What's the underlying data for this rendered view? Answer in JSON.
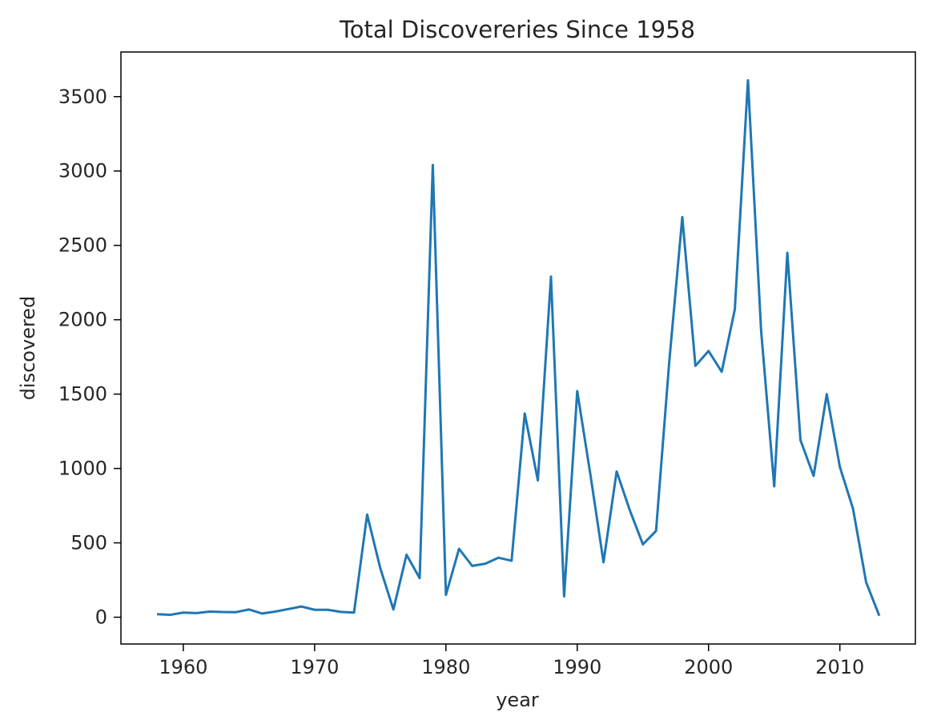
{
  "chart_data": {
    "type": "line",
    "title": "Total Discovereries Since 1958",
    "xlabel": "year",
    "ylabel": "discovered",
    "xlim": [
      1955.25,
      2015.75
    ],
    "ylim": [
      -180,
      3800
    ],
    "xticks": [
      1960,
      1970,
      1980,
      1990,
      2000,
      2010
    ],
    "yticks": [
      0,
      500,
      1000,
      1500,
      2000,
      2500,
      3000,
      3500
    ],
    "grid": false,
    "series": [
      {
        "color": "#1f77b4",
        "x": [
          1958,
          1959,
          1960,
          1961,
          1962,
          1963,
          1964,
          1965,
          1966,
          1967,
          1968,
          1969,
          1970,
          1971,
          1972,
          1973,
          1974,
          1975,
          1976,
          1977,
          1978,
          1979,
          1980,
          1981,
          1982,
          1983,
          1984,
          1985,
          1986,
          1987,
          1988,
          1989,
          1990,
          1991,
          1992,
          1993,
          1994,
          1995,
          1996,
          1997,
          1998,
          1999,
          2000,
          2001,
          2002,
          2003,
          2004,
          2005,
          2006,
          2007,
          2008,
          2009,
          2010,
          2011,
          2012,
          2013
        ],
        "values": [
          20,
          16,
          31,
          28,
          38,
          35,
          34,
          52,
          25,
          38,
          55,
          72,
          50,
          50,
          36,
          31,
          690,
          330,
          52,
          420,
          263,
          3040,
          150,
          460,
          345,
          360,
          400,
          380,
          1370,
          920,
          2290,
          140,
          1520,
          960,
          370,
          980,
          720,
          490,
          580,
          1710,
          2690,
          1690,
          1790,
          1650,
          2070,
          3610,
          1930,
          880,
          2450,
          1190,
          950,
          1500,
          1010,
          730,
          235,
          10
        ]
      }
    ]
  }
}
